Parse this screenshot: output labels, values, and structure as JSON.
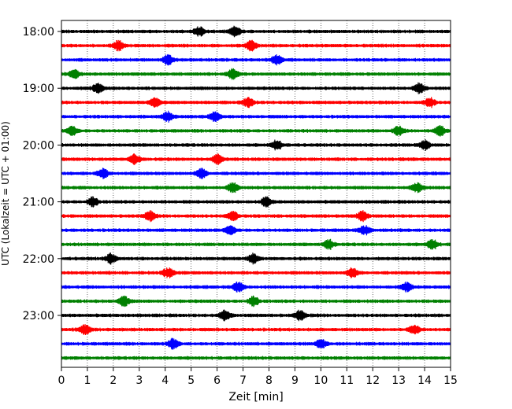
{
  "chart_data": {
    "type": "line",
    "title": "",
    "xlabel": "Zeit  [min]",
    "ylabel": "UTC (Lokalzeit = UTC + 01:00)",
    "xlim": [
      0,
      15
    ],
    "x_ticks": [
      0,
      1,
      2,
      3,
      4,
      5,
      6,
      7,
      8,
      9,
      10,
      11,
      12,
      13,
      14,
      15
    ],
    "x_tick_labels": [
      "0",
      "1",
      "2",
      "3",
      "4",
      "5",
      "6",
      "7",
      "8",
      "9",
      "10",
      "11",
      "12",
      "13",
      "14",
      "15"
    ],
    "vertical_grid": true,
    "grid_style": "dotted",
    "minutes_per_trace": 15,
    "y_tick_labels": [
      "18:00",
      "19:00",
      "20:00",
      "21:00",
      "22:00",
      "23:00"
    ],
    "color_cycle": [
      "#000000",
      "#ff0000",
      "#0000ff",
      "#008000"
    ],
    "traces": [
      {
        "start": "18:00",
        "bursts": [
          5.3,
          6.7
        ]
      },
      {
        "start": "18:15",
        "bursts": [
          2.2,
          7.3
        ]
      },
      {
        "start": "18:30",
        "bursts": [
          4.1,
          8.3
        ]
      },
      {
        "start": "18:45",
        "bursts": [
          0.5,
          6.6
        ]
      },
      {
        "start": "19:00",
        "bursts": [
          1.4,
          13.8
        ]
      },
      {
        "start": "19:15",
        "bursts": [
          3.6,
          7.2,
          14.2
        ]
      },
      {
        "start": "19:30",
        "bursts": [
          4.1,
          5.9
        ]
      },
      {
        "start": "19:45",
        "bursts": [
          0.4,
          13.0,
          14.6
        ]
      },
      {
        "start": "20:00",
        "bursts": [
          8.3,
          14.0
        ]
      },
      {
        "start": "20:15",
        "bursts": [
          2.8,
          6.0
        ]
      },
      {
        "start": "20:30",
        "bursts": [
          1.6,
          5.4
        ]
      },
      {
        "start": "20:45",
        "bursts": [
          6.6,
          13.7
        ]
      },
      {
        "start": "21:00",
        "bursts": [
          1.2,
          7.9
        ]
      },
      {
        "start": "21:15",
        "bursts": [
          3.4,
          6.6,
          11.6
        ]
      },
      {
        "start": "21:30",
        "bursts": [
          6.5,
          11.7
        ]
      },
      {
        "start": "21:45",
        "bursts": [
          10.3,
          14.3
        ]
      },
      {
        "start": "22:00",
        "bursts": [
          1.9,
          7.4
        ]
      },
      {
        "start": "22:15",
        "bursts": [
          4.1,
          11.2
        ]
      },
      {
        "start": "22:30",
        "bursts": [
          6.8,
          13.3
        ]
      },
      {
        "start": "22:45",
        "bursts": [
          2.4,
          7.4
        ]
      },
      {
        "start": "23:00",
        "bursts": [
          6.3,
          9.2
        ]
      },
      {
        "start": "23:15",
        "bursts": [
          0.9,
          13.6
        ]
      },
      {
        "start": "23:30",
        "bursts": [
          4.3,
          10.0
        ]
      },
      {
        "start": "23:45",
        "bursts": []
      }
    ]
  }
}
